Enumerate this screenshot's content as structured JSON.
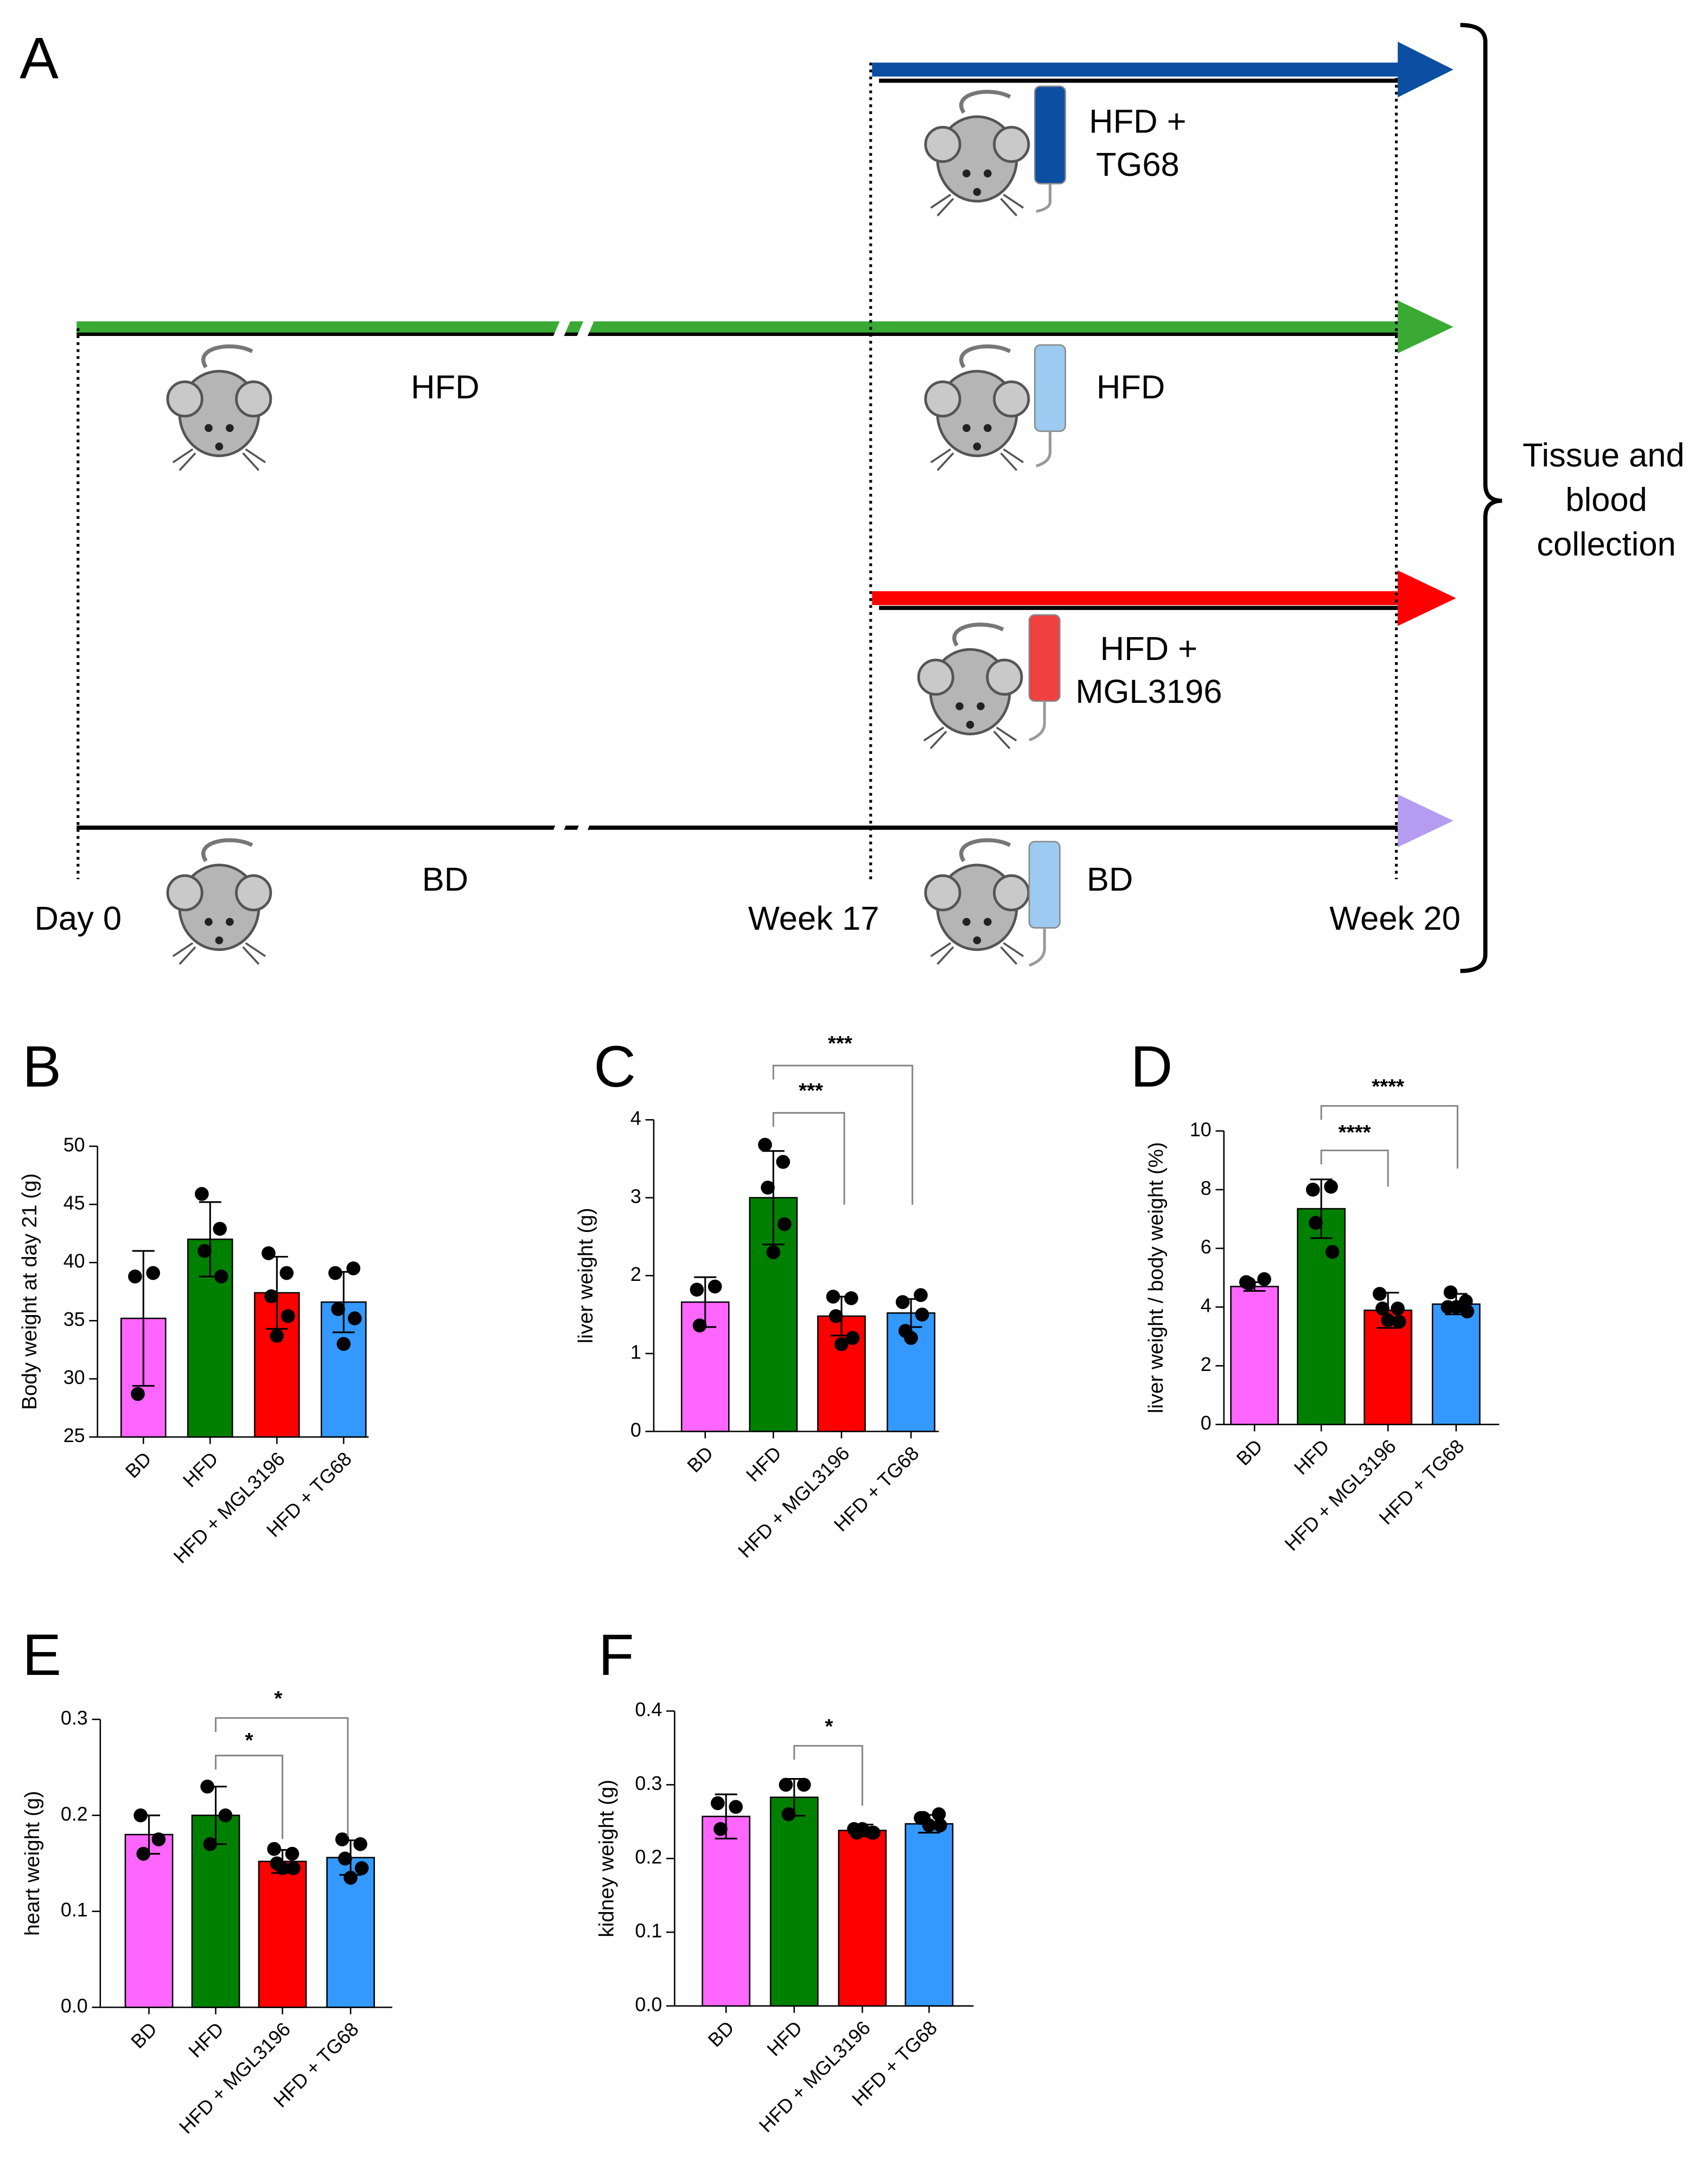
{
  "diagram": {
    "panel": "A",
    "hfd_top": "HFD",
    "bd_top": "BD",
    "tg68": [
      "HFD +",
      "TG68"
    ],
    "hfd": "HFD",
    "mgl": [
      "HFD +",
      "MGL3196"
    ],
    "bd": "BD",
    "timepoints": [
      "Day 0",
      "Week 17",
      "Week 20"
    ],
    "collection": [
      "Tissue and",
      "blood",
      "collection"
    ]
  },
  "chart_data": [
    {
      "type": "bar",
      "panel": "B",
      "ylabel": "Body weight at day 21 (g)",
      "categories": [
        "BD",
        "HFD",
        "HFD + MGL3196",
        "HFD + TG68"
      ],
      "colors": [
        "#ff66ff",
        "#008000",
        "#ff0000",
        "#3399ff"
      ],
      "values": [
        35.2,
        42.0,
        37.4,
        36.6
      ],
      "errors": [
        5.8,
        3.2,
        3.1,
        2.6
      ],
      "points": [
        [
          38.8,
          39.1,
          28.7
        ],
        [
          45.9,
          42.9,
          41.0,
          38.8
        ],
        [
          40.8,
          39.1,
          37.1,
          35.4,
          33.7
        ],
        [
          39.1,
          39.5,
          36.0,
          35.2,
          33.0
        ]
      ],
      "ylim": [
        25,
        50
      ],
      "yticks": [
        25,
        30,
        35,
        40,
        45,
        50
      ],
      "annotations": []
    },
    {
      "type": "bar",
      "panel": "C",
      "ylabel": "liver weight (g)",
      "categories": [
        "BD",
        "HFD",
        "HFD + MGL3196",
        "HFD + TG68"
      ],
      "colors": [
        "#ff66ff",
        "#008000",
        "#ff0000",
        "#3399ff"
      ],
      "values": [
        1.66,
        3.0,
        1.48,
        1.52
      ],
      "errors": [
        0.32,
        0.6,
        0.25,
        0.18
      ],
      "points": [
        [
          1.82,
          1.86,
          1.36
        ],
        [
          3.68,
          3.46,
          3.13,
          2.66,
          2.3
        ],
        [
          1.73,
          1.71,
          1.48,
          1.2,
          1.12
        ],
        [
          1.66,
          1.75,
          1.29,
          1.5,
          1.2
        ]
      ],
      "ylim": [
        0,
        4
      ],
      "yticks": [
        0,
        1,
        2,
        3,
        4
      ],
      "annotations": [
        "***",
        "***"
      ]
    },
    {
      "type": "bar",
      "panel": "D",
      "ylabel": "liver weight / body weight (%)",
      "categories": [
        "BD",
        "HFD",
        "HFD + MGL3196",
        "HFD + TG68"
      ],
      "colors": [
        "#ff66ff",
        "#008000",
        "#ff0000",
        "#3399ff"
      ],
      "values": [
        4.7,
        7.35,
        3.89,
        4.1
      ],
      "errors": [
        0.15,
        1.0,
        0.6,
        0.35
      ],
      "points": [
        [
          4.85,
          4.95,
          4.8
        ],
        [
          8.0,
          8.1,
          6.87,
          5.88
        ],
        [
          4.45,
          3.95,
          3.95,
          3.5,
          3.55
        ],
        [
          4.0,
          4.2,
          4.5,
          3.85,
          4.0
        ]
      ],
      "ylim": [
        0,
        10
      ],
      "yticks": [
        0,
        2,
        4,
        6,
        8,
        10
      ],
      "annotations": [
        "****",
        "****"
      ]
    },
    {
      "type": "bar",
      "panel": "E",
      "ylabel": "heart weight (g)",
      "categories": [
        "BD",
        "HFD",
        "HFD + MGL3196",
        "HFD + TG68"
      ],
      "colors": [
        "#ff66ff",
        "#008000",
        "#ff0000",
        "#3399ff"
      ],
      "values": [
        0.18,
        0.2,
        0.152,
        0.156
      ],
      "errors": [
        0.02,
        0.03,
        0.012,
        0.018
      ],
      "points": [
        [
          0.2,
          0.175,
          0.16
        ],
        [
          0.23,
          0.2,
          0.17
        ],
        [
          0.165,
          0.16,
          0.15,
          0.145,
          0.145
        ],
        [
          0.175,
          0.17,
          0.155,
          0.145,
          0.135
        ]
      ],
      "ylim": [
        0,
        0.3
      ],
      "yticks": [
        {
          "value": 0,
          "label": "0.0"
        },
        0.1,
        0.2,
        0.3
      ],
      "annotations": [
        "*",
        "*"
      ]
    },
    {
      "type": "bar",
      "panel": "F",
      "ylabel": "kidney weight (g)",
      "categories": [
        "BD",
        "HFD",
        "HFD + MGL3196",
        "HFD + TG68"
      ],
      "colors": [
        "#ff66ff",
        "#008000",
        "#ff0000",
        "#3399ff"
      ],
      "values": [
        0.257,
        0.283,
        0.238,
        0.247
      ],
      "errors": [
        0.03,
        0.025,
        0.008,
        0.012
      ],
      "points": [
        [
          0.275,
          0.27,
          0.24
        ],
        [
          0.3,
          0.3,
          0.26
        ],
        [
          0.24,
          0.235,
          0.235,
          0.235,
          0.24
        ],
        [
          0.255,
          0.26,
          0.255,
          0.245,
          0.245
        ]
      ],
      "ylim": [
        0,
        0.4
      ],
      "yticks": [
        {
          "value": 0,
          "label": "0.0"
        },
        0.1,
        0.2,
        0.3,
        0.4
      ],
      "annotations": [
        "*"
      ]
    }
  ]
}
